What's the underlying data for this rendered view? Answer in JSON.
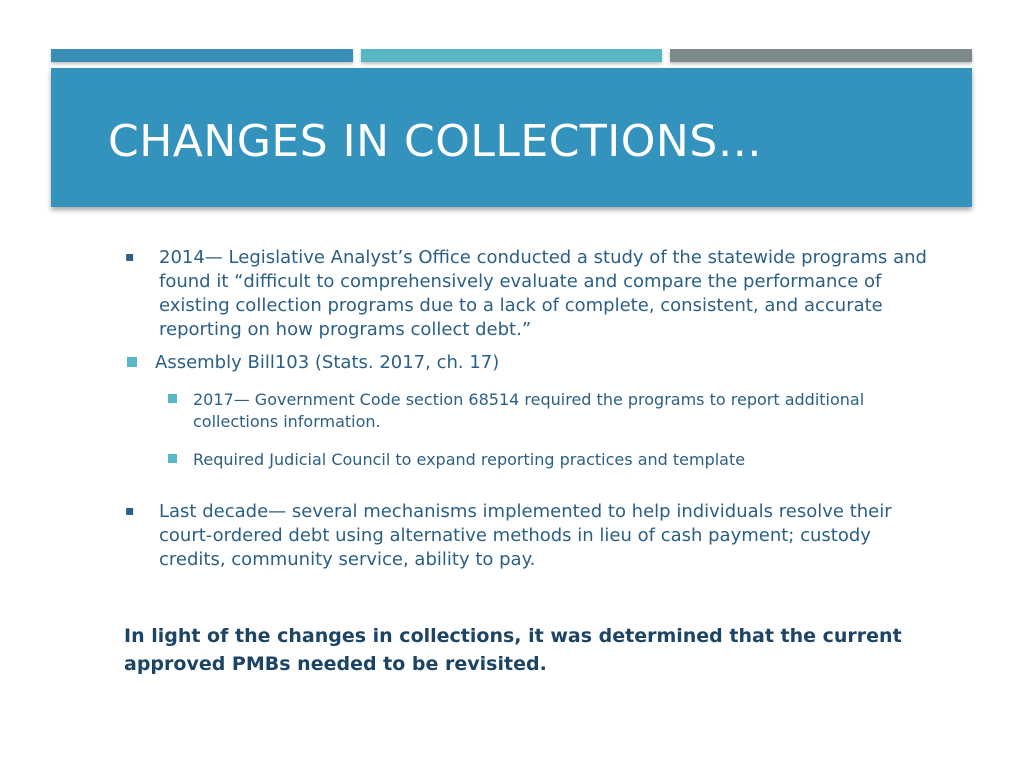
{
  "colors": {
    "bar_1": "#3a8fb7",
    "bar_2": "#58b7c4",
    "bar_3": "#7d8a8c",
    "title_band": "#3493bd",
    "title_text": "#ffffff",
    "body_text": "#2b5f86",
    "bullet_square": "#58b7c4",
    "conclusion_text": "#1c4466"
  },
  "slide": {
    "title": "CHANGES IN COLLECTIONS…",
    "bullets": [
      {
        "marker": "▪",
        "text": "2014— Legislative Analyst’s Office conducted a study of the statewide programs and found it “difficult to comprehensively evaluate and compare the performance of existing collection programs due to a lack of complete, consistent, and accurate reporting on how programs collect debt.”"
      },
      {
        "marker_icon": "square-bullet-icon",
        "text": "Assembly Bill103 (Stats. 2017, ch. 17)",
        "sub_bullets": [
          {
            "marker_icon": "square-bullet-icon",
            "text": "2017— Government Code section 68514 required the programs to report additional collections information."
          },
          {
            "marker_icon": "square-bullet-icon",
            "text": "Required Judicial Council to expand reporting practices and template"
          }
        ]
      },
      {
        "marker": "▪",
        "text": "Last decade— several mechanisms implemented to help individuals resolve their court-ordered debt using alternative methods in lieu of cash payment; custody credits, community service, ability to pay."
      }
    ],
    "conclusion": "In light of the changes in collections, it was determined that the current approved PMBs needed to be revisited."
  }
}
